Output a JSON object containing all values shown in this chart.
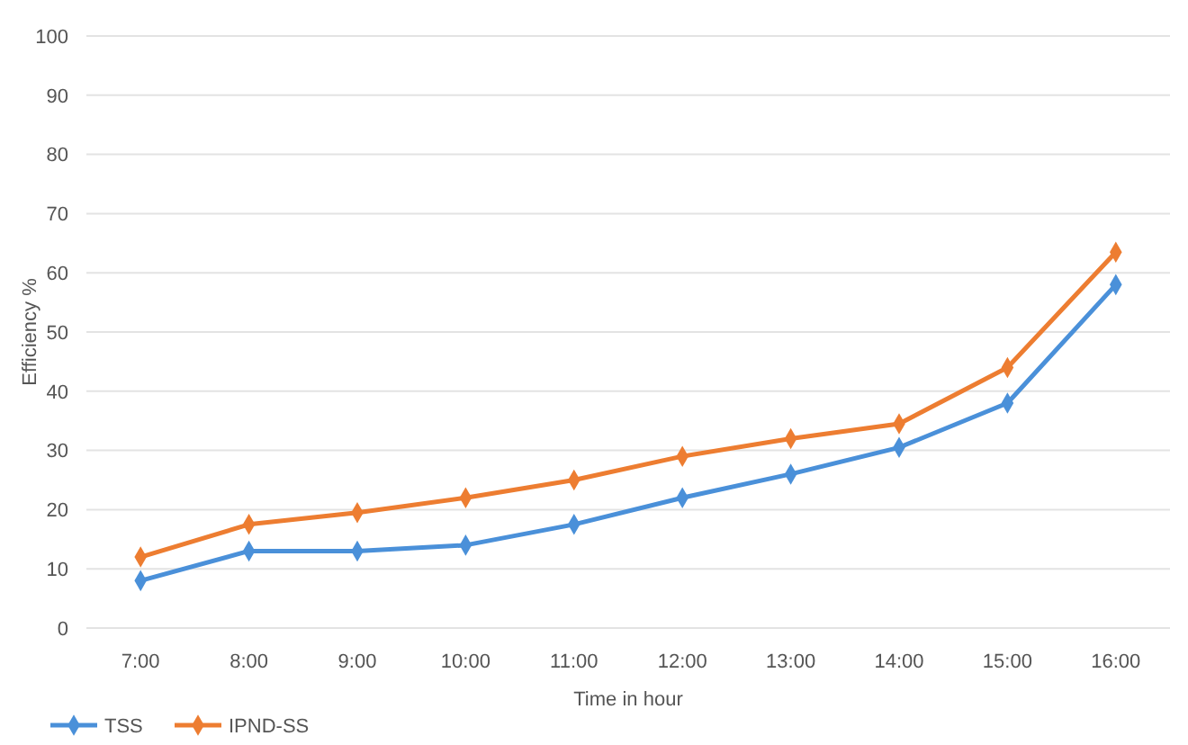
{
  "chart_data": {
    "type": "line",
    "xlabel": "Time in hour",
    "ylabel": "Efficiency %",
    "categories": [
      "7:00",
      "8:00",
      "9:00",
      "10:00",
      "11:00",
      "12:00",
      "13:00",
      "14:00",
      "15:00",
      "16:00"
    ],
    "series": [
      {
        "name": "TSS",
        "color": "#4a90d9",
        "values": [
          8,
          13,
          13,
          14,
          17.5,
          22,
          26,
          30.5,
          38,
          58
        ]
      },
      {
        "name": "IPND-SS",
        "color": "#ed7d31",
        "values": [
          12,
          17.5,
          19.5,
          22,
          25,
          29,
          32,
          34.5,
          44,
          63.5
        ]
      }
    ],
    "ylim": [
      0,
      100
    ],
    "yticks": [
      0,
      10,
      20,
      30,
      40,
      50,
      60,
      70,
      80,
      90,
      100
    ],
    "grid": "y",
    "legend": "bottom left",
    "marker": "diamond",
    "line_style": "solid"
  }
}
